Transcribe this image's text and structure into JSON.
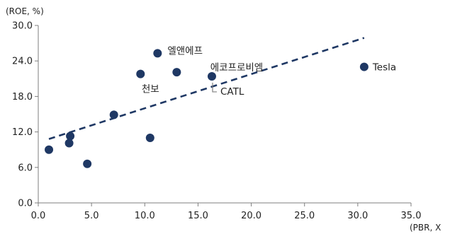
{
  "chart_data": {
    "type": "scatter",
    "ylabel": "(ROE, %)",
    "xlabel": "(PBR, X",
    "xlim": [
      0,
      35
    ],
    "ylim": [
      0,
      30
    ],
    "x_ticks": [
      "0.0",
      "5.0",
      "10.0",
      "15.0",
      "20.0",
      "25.0",
      "30.0",
      "35.0"
    ],
    "y_ticks": [
      "0.0",
      "6.0",
      "12.0",
      "18.0",
      "24.0",
      "30.0"
    ],
    "points": [
      {
        "x": 1.0,
        "y": 9.0,
        "label": ""
      },
      {
        "x": 2.9,
        "y": 10.1,
        "label": ""
      },
      {
        "x": 3.0,
        "y": 11.3,
        "label": ""
      },
      {
        "x": 4.6,
        "y": 6.6,
        "label": ""
      },
      {
        "x": 7.1,
        "y": 14.9,
        "label": ""
      },
      {
        "x": 9.6,
        "y": 21.8,
        "label": "천보"
      },
      {
        "x": 10.5,
        "y": 11.0,
        "label": ""
      },
      {
        "x": 11.2,
        "y": 25.3,
        "label": "엘앤에프"
      },
      {
        "x": 13.0,
        "y": 22.1,
        "label": ""
      },
      {
        "x": 16.3,
        "y": 21.4,
        "label": "에코프로비엠"
      },
      {
        "x": 30.6,
        "y": 23.0,
        "label": "Tesla"
      }
    ],
    "annotations": [
      {
        "text": "CATL",
        "x": 16.3,
        "y": 21.4
      }
    ],
    "trendline": {
      "style": "dashed",
      "x": [
        1.0,
        30.6
      ],
      "y": [
        10.8,
        27.9
      ]
    },
    "colors": {
      "point": "#1f3864",
      "trendline": "#1f3864",
      "axis": "#7f7f7f",
      "text": "#222222"
    }
  }
}
